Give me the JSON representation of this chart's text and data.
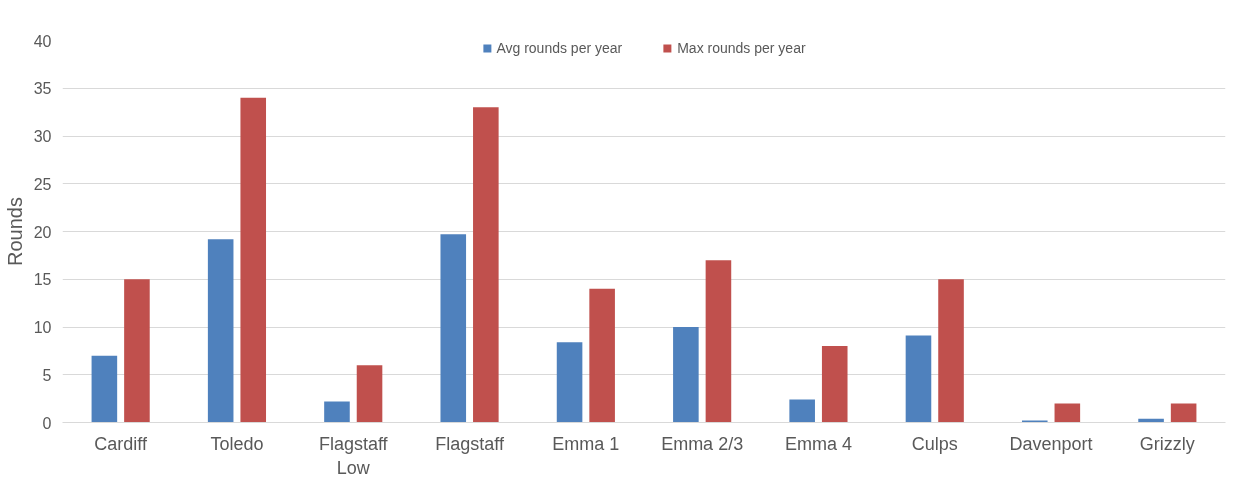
{
  "chart_data": {
    "type": "bar",
    "ylabel": "Rounds",
    "categories": [
      "Cardiff",
      "Toledo",
      "Flagstaff Low",
      "Flagstaff",
      "Emma 1",
      "Emma 2/3",
      "Emma 4",
      "Culps",
      "Davenport",
      "Grizzly"
    ],
    "series": [
      {
        "name": "Avg rounds per year",
        "color": "#4f81bd",
        "values": [
          7.0,
          19.2,
          2.2,
          19.7,
          8.4,
          10.0,
          2.4,
          9.1,
          0.2,
          0.4
        ]
      },
      {
        "name": "Max rounds per year",
        "color": "#c0504d",
        "values": [
          15,
          34,
          6,
          33,
          14,
          17,
          8,
          15,
          2,
          2
        ]
      }
    ],
    "ylim": [
      0,
      40
    ],
    "yticks": [
      0,
      5,
      10,
      15,
      20,
      25,
      30,
      35,
      40
    ],
    "grid": "y",
    "legend": "top"
  }
}
